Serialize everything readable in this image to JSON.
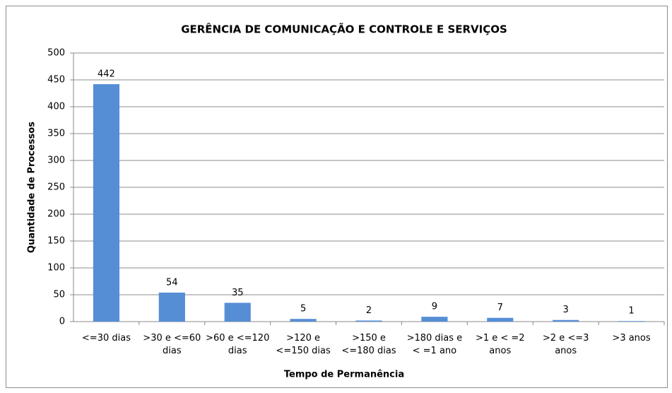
{
  "chart_data": {
    "type": "bar",
    "title": "GERÊNCIA DE COMUNICAÇÃO E CONTROLE E SERVIÇOS",
    "x_label": "Tempo de Permanência",
    "y_label": "Quantidade de Processos",
    "categories": [
      "<=30 dias",
      ">30 e <=60 dias",
      ">60 e <=120 dias",
      ">120 e <=150 dias",
      ">150 e <=180 dias",
      ">180 dias e < =1 ano",
      ">1 e < =2 anos",
      ">2 e <=3 anos",
      ">3 anos"
    ],
    "values": [
      442,
      54,
      35,
      5,
      2,
      9,
      7,
      3,
      1
    ],
    "color": "#558ed5",
    "ylim": [
      0,
      500
    ],
    "yticks": [
      0,
      50,
      100,
      150,
      200,
      250,
      300,
      350,
      400,
      450,
      500
    ],
    "grid": true
  }
}
